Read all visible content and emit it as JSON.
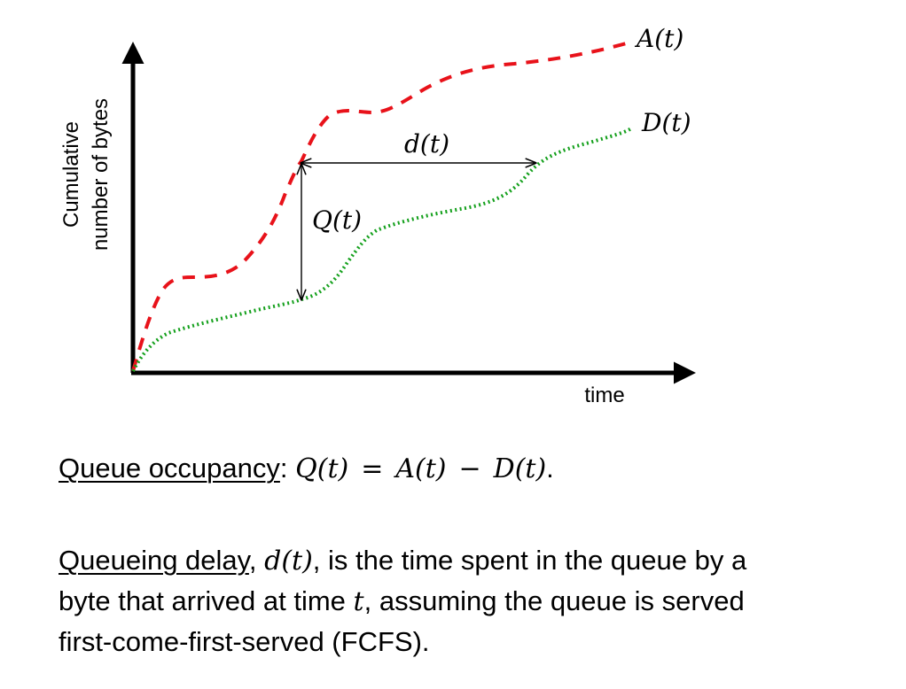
{
  "diagram": {
    "y_axis_label_line1": "Cumulative",
    "y_axis_label_line2": "number of bytes",
    "x_axis_label": "time",
    "curve_a_label": "A(t)",
    "curve_d_label": "D(t)",
    "delay_label": "d(t)",
    "queue_label": "Q(t)",
    "colors": {
      "arrivals": "#e8121a",
      "departures": "#14a01c",
      "axes": "#000000"
    }
  },
  "occupancy": {
    "term": "Queue occupancy",
    "colon": ":",
    "lhs": "Q(t)",
    "equals": "=",
    "a": "A(t)",
    "minus": "−",
    "d": "D(t)",
    "period": "."
  },
  "delay": {
    "term": "Queueing delay",
    "comma": ",",
    "symbol": "d(t)",
    "rest_line1": ", is the time spent in the queue by a",
    "line2_pre": "byte that arrived at time ",
    "line2_var": "t",
    "line2_post": ", assuming the queue is served",
    "line3": "first-come-first-served (FCFS)."
  }
}
